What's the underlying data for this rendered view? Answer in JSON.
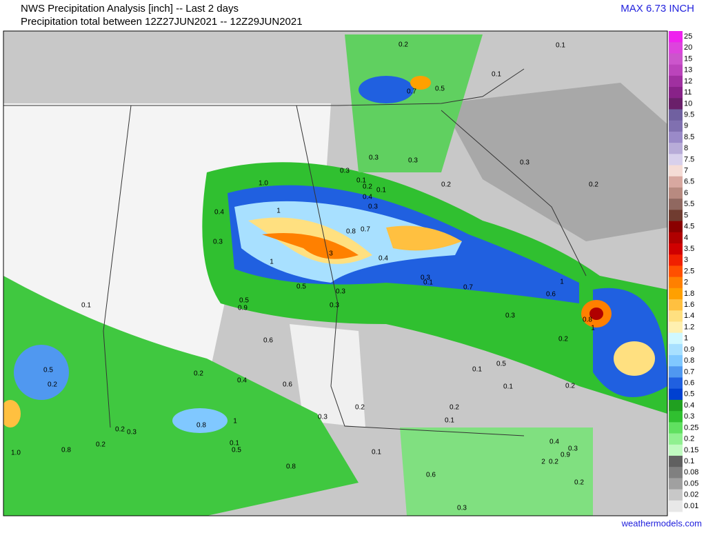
{
  "header": {
    "title": "NWS Precipitation Analysis [inch] -- Last 2 days",
    "subtitle": "Precipitation total between 12Z27JUN2021 -- 12Z29JUN2021",
    "max": "MAX 6.73 INCH"
  },
  "legend": [
    {
      "label": "25",
      "color": "#ee22ee"
    },
    {
      "label": "20",
      "color": "#dd44dd"
    },
    {
      "label": "15",
      "color": "#cc55cc"
    },
    {
      "label": "13",
      "color": "#bb44bb"
    },
    {
      "label": "12",
      "color": "#a030a0"
    },
    {
      "label": "11",
      "color": "#882288"
    },
    {
      "label": "10",
      "color": "#6a1f6a"
    },
    {
      "label": "9.5",
      "color": "#7060a0"
    },
    {
      "label": "9",
      "color": "#8070b0"
    },
    {
      "label": "8.5",
      "color": "#9a8ac8"
    },
    {
      "label": "8",
      "color": "#b8acd8"
    },
    {
      "label": "7.5",
      "color": "#d8d0ec"
    },
    {
      "label": "7",
      "color": "#f5dcd6"
    },
    {
      "label": "6.5",
      "color": "#d8a8a0"
    },
    {
      "label": "6",
      "color": "#b88a80"
    },
    {
      "label": "5.5",
      "color": "#906860"
    },
    {
      "label": "5",
      "color": "#703c30"
    },
    {
      "label": "4.5",
      "color": "#8a0000"
    },
    {
      "label": "4",
      "color": "#b00000"
    },
    {
      "label": "3.5",
      "color": "#d00000"
    },
    {
      "label": "3",
      "color": "#f02000"
    },
    {
      "label": "2.5",
      "color": "#ff5000"
    },
    {
      "label": "2",
      "color": "#ff8000"
    },
    {
      "label": "1.8",
      "color": "#ffa000"
    },
    {
      "label": "1.6",
      "color": "#ffc040"
    },
    {
      "label": "1.4",
      "color": "#ffe080"
    },
    {
      "label": "1.2",
      "color": "#fff0b0"
    },
    {
      "label": "1",
      "color": "#d0f8ff"
    },
    {
      "label": "0.9",
      "color": "#a8e0ff"
    },
    {
      "label": "0.8",
      "color": "#80c8ff"
    },
    {
      "label": "0.7",
      "color": "#5098f0"
    },
    {
      "label": "0.6",
      "color": "#2060e0"
    },
    {
      "label": "0.5",
      "color": "#0040d0"
    },
    {
      "label": "0.4",
      "color": "#20a020"
    },
    {
      "label": "0.3",
      "color": "#30c030"
    },
    {
      "label": "0.25",
      "color": "#60e060"
    },
    {
      "label": "0.2",
      "color": "#90f090"
    },
    {
      "label": "0.15",
      "color": "#c0fac0"
    },
    {
      "label": "0.1",
      "color": "#606060"
    },
    {
      "label": "0.08",
      "color": "#808080"
    },
    {
      "label": "0.05",
      "color": "#a0a0a0"
    },
    {
      "label": "0.02",
      "color": "#c8c8c8"
    },
    {
      "label": "0.01",
      "color": "#e8e8e8"
    }
  ],
  "map_labels": [
    "0.2",
    "0.1",
    "0.1",
    "0.7",
    "0.5",
    "0.3",
    "0.3",
    "0.3",
    "0.3",
    "0.1",
    "0.2",
    "0.1",
    "0.2",
    "0.2",
    "1.0",
    "0.4",
    "0.3",
    "1",
    "0.4",
    "0.8",
    "0.7",
    "0.3",
    "3",
    "1",
    "0.4",
    "0.3",
    "0.1",
    "0.5",
    "0.3",
    "0.7",
    "1",
    "0.6",
    "0.1",
    "0.5",
    "0.9",
    "0.3",
    "0.3",
    "0.8",
    "1",
    "0.2",
    "0.6",
    "0.5",
    "0.2",
    "0.2",
    "0.4",
    "0.5",
    "0.1",
    "0.6",
    "0.1",
    "0.2",
    "0.2",
    "0.2",
    "0.3",
    "0.1",
    "0.8",
    "1",
    "0.2",
    "0.3",
    "0.4",
    "0.2",
    "0.1",
    "0.3",
    "1.0",
    "0.8",
    "0.5",
    "0.1",
    "0.9",
    "2",
    "0.2",
    "0.6",
    "0.2",
    "0.3",
    "0.8"
  ],
  "footer": {
    "credit": "weathermodels.com"
  }
}
